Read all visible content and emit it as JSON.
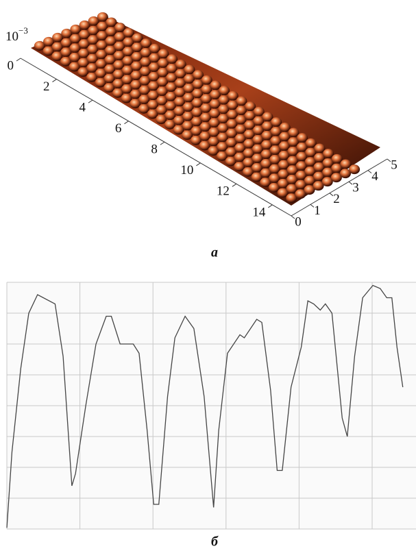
{
  "figure_a": {
    "caption": "а",
    "z_scale": {
      "base": "10",
      "exponent": "−3"
    },
    "x_ticks": [
      0,
      2,
      4,
      6,
      8,
      10,
      12,
      14
    ],
    "y_ticks": [
      0,
      1,
      2,
      3,
      4,
      5
    ]
  },
  "figure_b": {
    "caption": "б"
  },
  "chart_data": {
    "type": "line",
    "color": "#444444",
    "grid": true,
    "x": [
      0,
      0.07,
      0.19,
      0.3,
      0.42,
      0.66,
      0.77,
      0.89,
      0.94,
      1.08,
      1.22,
      1.36,
      1.43,
      1.55,
      1.64,
      1.73,
      1.81,
      1.92,
      2.01,
      2.08,
      2.2,
      2.3,
      2.44,
      2.56,
      2.7,
      2.83,
      2.9,
      3.02,
      3.19,
      3.25,
      3.42,
      3.49,
      3.61,
      3.7,
      3.77,
      3.89,
      4.03,
      4.12,
      4.2,
      4.29,
      4.36,
      4.45,
      4.59,
      4.66,
      4.76,
      4.87,
      5.01,
      5.11,
      5.2,
      5.27,
      5.34,
      5.42
    ],
    "values": [
      0.04,
      2.5,
      5.2,
      7.0,
      7.6,
      7.3,
      5.6,
      1.4,
      1.8,
      4.0,
      6.0,
      6.9,
      6.9,
      6.0,
      6.0,
      6.0,
      5.7,
      3.2,
      0.8,
      0.8,
      4.3,
      6.2,
      6.9,
      6.5,
      4.3,
      0.7,
      3.2,
      5.7,
      6.3,
      6.2,
      6.8,
      6.7,
      4.5,
      1.9,
      1.9,
      4.6,
      5.9,
      7.4,
      7.3,
      7.1,
      7.3,
      7.0,
      3.6,
      3.0,
      5.6,
      7.5,
      7.9,
      7.8,
      7.5,
      7.5,
      5.9,
      4.6
    ],
    "xlim": [
      0,
      5.6
    ],
    "ylim": [
      0,
      8
    ],
    "xticks": [
      0,
      1,
      2,
      3,
      4,
      5
    ],
    "yticks": [
      0,
      1,
      2,
      3,
      4,
      5,
      6,
      7,
      8
    ]
  }
}
